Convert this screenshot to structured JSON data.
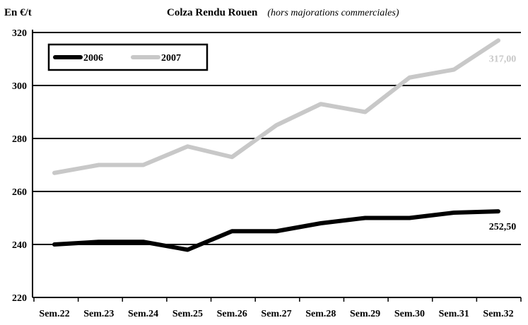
{
  "chart_data": {
    "type": "line",
    "title": "Colza Rendu Rouen",
    "subtitle": "(hors majorations commerciales)",
    "ylabel": "En €/t",
    "xlabel": "",
    "categories": [
      "Sem.22",
      "Sem.23",
      "Sem.24",
      "Sem.25",
      "Sem.26",
      "Sem.27",
      "Sem.28",
      "Sem.29",
      "Sem.30",
      "Sem.31",
      "Sem.32"
    ],
    "ylim": [
      220,
      320
    ],
    "yticks": [
      220,
      240,
      260,
      280,
      300,
      320
    ],
    "grid": true,
    "legend_placement": "top-left",
    "series": [
      {
        "name": "2006",
        "color": "#000000",
        "values": [
          240,
          241,
          241,
          238,
          245,
          245,
          248,
          250,
          250,
          252,
          252.5
        ],
        "end_label": "252,50"
      },
      {
        "name": "2007",
        "color": "#c8c8c8",
        "values": [
          267,
          270,
          270,
          277,
          273,
          285,
          293,
          290,
          303,
          306,
          317
        ],
        "end_label": "317,00"
      }
    ]
  }
}
